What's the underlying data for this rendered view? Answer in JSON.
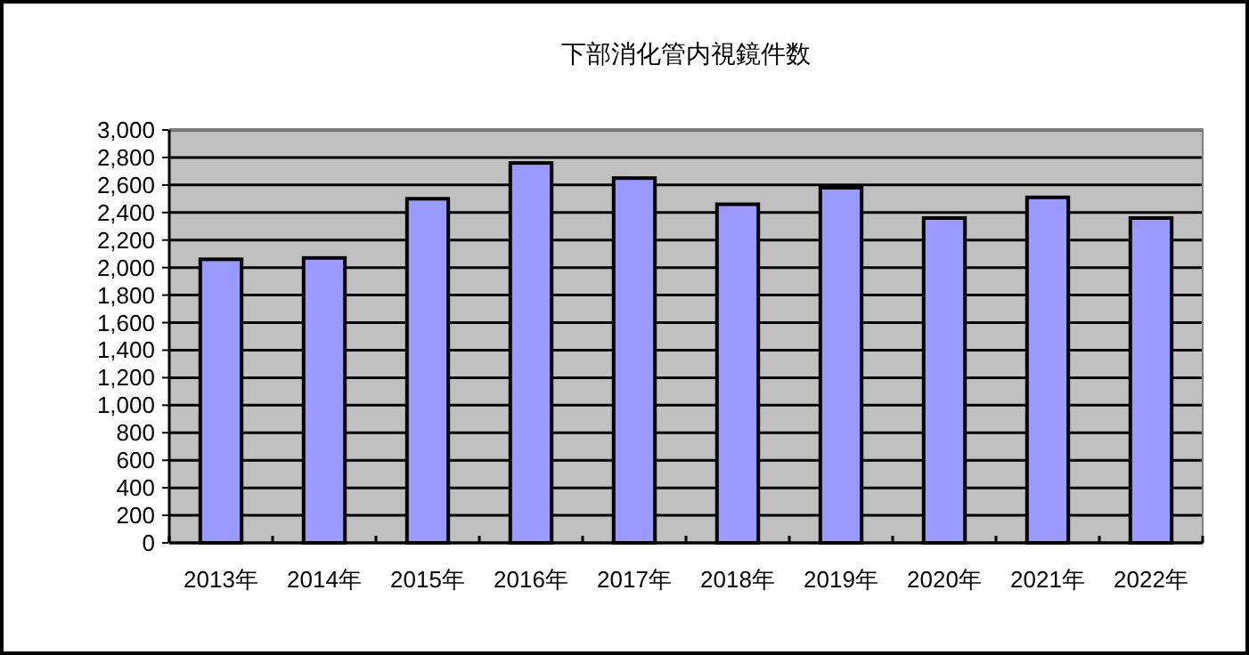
{
  "chart_data": {
    "type": "bar",
    "title": "下部消化管内視鏡件数",
    "categories": [
      "2013年",
      "2014年",
      "2015年",
      "2016年",
      "2017年",
      "2018年",
      "2019年",
      "2020年",
      "2021年",
      "2022年"
    ],
    "values": [
      2060,
      2070,
      2500,
      2760,
      2650,
      2460,
      2580,
      2360,
      2510,
      2360
    ],
    "color": "#9999ff",
    "ylim": [
      0,
      3000
    ],
    "yticks": [
      0,
      200,
      400,
      600,
      800,
      {
        "value": 1000,
        "label": "1,000"
      },
      {
        "value": 1200,
        "label": "1,200"
      },
      {
        "value": 1400,
        "label": "1,400"
      },
      {
        "value": 1600,
        "label": "1,600"
      },
      {
        "value": 1800,
        "label": "1,800"
      },
      {
        "value": 2000,
        "label": "2,000"
      },
      {
        "value": 2200,
        "label": "2,200"
      },
      {
        "value": 2400,
        "label": "2,400"
      },
      {
        "value": 2600,
        "label": "2,600"
      },
      {
        "value": 2800,
        "label": "2,800"
      },
      {
        "value": 3000,
        "label": "3,000"
      }
    ],
    "grid": true
  }
}
